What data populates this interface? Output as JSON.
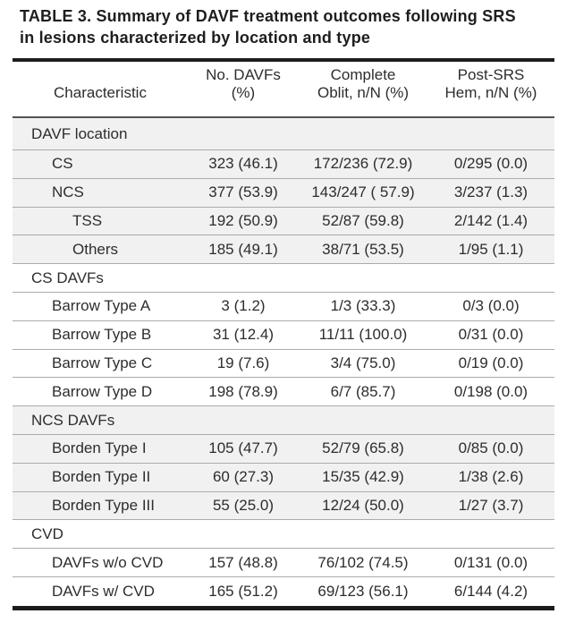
{
  "title": "TABLE 3. Summary of DAVF treatment outcomes following SRS in lesions characterized by location and type",
  "table": {
    "columns": [
      {
        "header": "Characteristic"
      },
      {
        "header": "No. DAVFs\n(%)"
      },
      {
        "header": "Complete\nOblit, n/N (%)"
      },
      {
        "header": "Post-SRS\nHem, n/N (%)"
      }
    ],
    "rows": [
      {
        "label": "DAVF location",
        "type": "section"
      },
      {
        "label": "CS",
        "indent": 1,
        "no_davfs": "323 (46.1)",
        "complete_oblit": "172/236 (72.9)",
        "post_srs_hem": "0/295 (0.0)"
      },
      {
        "label": "NCS",
        "indent": 1,
        "no_davfs": "377 (53.9)",
        "complete_oblit": "143/247 ( 57.9)",
        "post_srs_hem": "3/237 (1.3)"
      },
      {
        "label": "TSS",
        "indent": 2,
        "no_davfs": "192 (50.9)",
        "complete_oblit": "52/87 (59.8)",
        "post_srs_hem": "2/142 (1.4)"
      },
      {
        "label": "Others",
        "indent": 2,
        "no_davfs": "185 (49.1)",
        "complete_oblit": "38/71 (53.5)",
        "post_srs_hem": "1/95 (1.1)"
      },
      {
        "label": "CS DAVFs",
        "type": "section"
      },
      {
        "label": "Barrow Type A",
        "indent": 1,
        "no_davfs": "3 (1.2)",
        "complete_oblit": "1/3 (33.3)",
        "post_srs_hem": "0/3 (0.0)"
      },
      {
        "label": "Barrow Type B",
        "indent": 1,
        "no_davfs": "31 (12.4)",
        "complete_oblit": "11/11 (100.0)",
        "post_srs_hem": "0/31 (0.0)"
      },
      {
        "label": "Barrow Type C",
        "indent": 1,
        "no_davfs": "19 (7.6)",
        "complete_oblit": "3/4 (75.0)",
        "post_srs_hem": "0/19 (0.0)"
      },
      {
        "label": "Barrow Type D",
        "indent": 1,
        "no_davfs": "198 (78.9)",
        "complete_oblit": "6/7 (85.7)",
        "post_srs_hem": "0/198 (0.0)"
      },
      {
        "label": "NCS DAVFs",
        "type": "section"
      },
      {
        "label": "Borden Type I",
        "indent": 1,
        "no_davfs": "105 (47.7)",
        "complete_oblit": "52/79 (65.8)",
        "post_srs_hem": "0/85 (0.0)"
      },
      {
        "label": "Borden Type II",
        "indent": 1,
        "no_davfs": "60 (27.3)",
        "complete_oblit": "15/35 (42.9)",
        "post_srs_hem": "1/38 (2.6)"
      },
      {
        "label": "Borden Type III",
        "indent": 1,
        "no_davfs": "55 (25.0)",
        "complete_oblit": "12/24 (50.0)",
        "post_srs_hem": "1/27 (3.7)"
      },
      {
        "label": "CVD",
        "type": "section"
      },
      {
        "label": "DAVFs w/o CVD",
        "indent": 1,
        "no_davfs": "157 (48.8)",
        "complete_oblit": "76/102 (74.5)",
        "post_srs_hem": "0/131 (0.0)"
      },
      {
        "label": "DAVFs w/ CVD",
        "indent": 1,
        "no_davfs": "165 (51.2)",
        "complete_oblit": "69/123 (56.1)",
        "post_srs_hem": "6/144 (4.2)"
      }
    ]
  },
  "colors": {
    "row_shade": "#f1f1f1",
    "thick_rule": "#1c1c1c",
    "header_rule": "#545454",
    "thin_rule": "#ababab",
    "text": "#2d2d2d",
    "background": "#ffffff"
  }
}
